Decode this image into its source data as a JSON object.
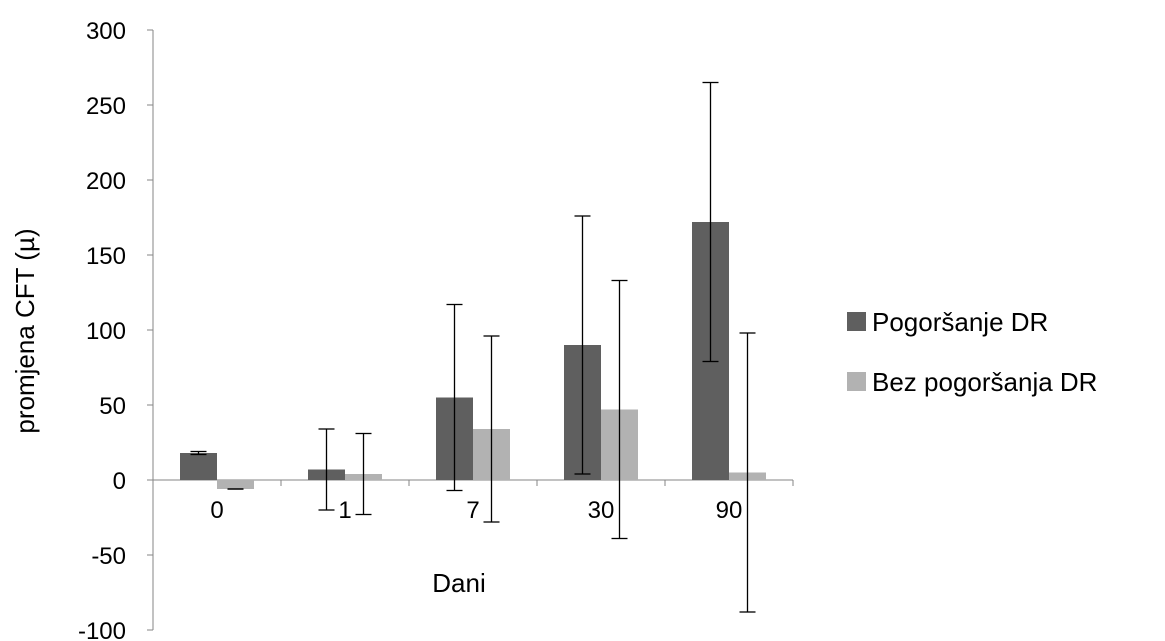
{
  "chart_data": {
    "type": "bar",
    "title": "",
    "xlabel": "Dani",
    "ylabel": "promjena CFT (µ)",
    "categories": [
      "0",
      "1",
      "7",
      "30",
      "90"
    ],
    "ylim": [
      -100,
      300
    ],
    "yticks": [
      -100,
      -50,
      0,
      50,
      100,
      150,
      200,
      250,
      300
    ],
    "grid": false,
    "legend_position": "right",
    "series": [
      {
        "name": "Pogoršanje DR",
        "color": "#5f5f5f",
        "values": [
          18,
          7,
          55,
          90,
          172
        ],
        "error": [
          1,
          27,
          62,
          86,
          93
        ]
      },
      {
        "name": "Bez pogoršanja DR",
        "color": "#b2b2b2",
        "values": [
          -6,
          4,
          34,
          47,
          5
        ],
        "error": [
          0,
          27,
          62,
          86,
          93
        ]
      }
    ]
  }
}
